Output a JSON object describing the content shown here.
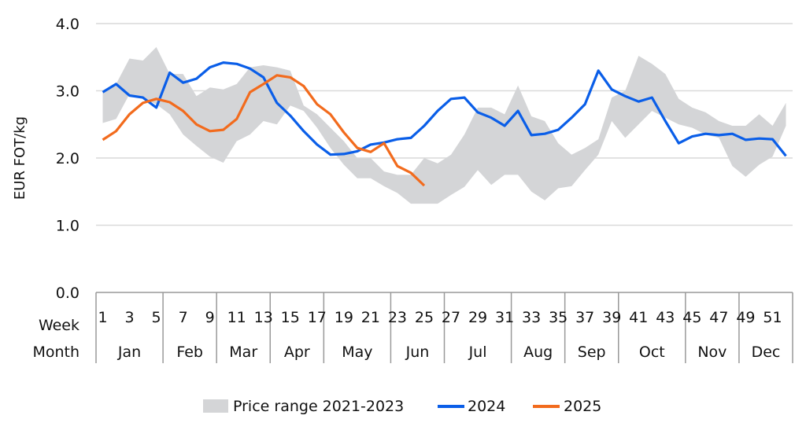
{
  "chart_data": {
    "type": "line",
    "ylabel": "EUR FOT/kg",
    "ylim": [
      0,
      4
    ],
    "yticks": [
      "0.0",
      "1.0",
      "2.0",
      "3.0",
      "4.0"
    ],
    "grid": true,
    "week_row_label": "Week",
    "month_row_label": "Month",
    "week_tick_labels": [
      "1",
      "3",
      "5",
      "7",
      "9",
      "11",
      "13",
      "15",
      "17",
      "19",
      "21",
      "23",
      "25",
      "27",
      "29",
      "31",
      "33",
      "35",
      "37",
      "39",
      "41",
      "43",
      "45",
      "47",
      "49",
      "51"
    ],
    "months": [
      {
        "label": "Jan",
        "weeks": 5
      },
      {
        "label": "Feb",
        "weeks": 4
      },
      {
        "label": "Mar",
        "weeks": 4
      },
      {
        "label": "Apr",
        "weeks": 4
      },
      {
        "label": "May",
        "weeks": 5
      },
      {
        "label": "Jun",
        "weeks": 4
      },
      {
        "label": "Jul",
        "weeks": 5
      },
      {
        "label": "Aug",
        "weeks": 4
      },
      {
        "label": "Sep",
        "weeks": 4
      },
      {
        "label": "Oct",
        "weeks": 5
      },
      {
        "label": "Nov",
        "weeks": 4
      },
      {
        "label": "Dec",
        "weeks": 4
      }
    ],
    "legend_position": "bottom",
    "range": {
      "name": "Price range 2021-2023",
      "color": "#d4d5d7",
      "upper": [
        3.0,
        3.1,
        3.48,
        3.45,
        3.65,
        3.25,
        3.25,
        2.92,
        3.05,
        3.02,
        3.1,
        3.35,
        3.38,
        3.35,
        3.3,
        2.78,
        2.65,
        2.45,
        2.25,
        2.0,
        2.0,
        1.8,
        1.75,
        1.75,
        2.0,
        1.92,
        2.05,
        2.35,
        2.75,
        2.75,
        2.65,
        3.08,
        2.62,
        2.55,
        2.22,
        2.05,
        2.15,
        2.28,
        2.9,
        3.0,
        3.52,
        3.4,
        3.25,
        2.88,
        2.75,
        2.68,
        2.55,
        2.48,
        2.48,
        2.65,
        2.48,
        2.82
      ],
      "lower": [
        2.52,
        2.58,
        2.95,
        2.88,
        2.8,
        2.65,
        2.35,
        2.18,
        2.02,
        1.93,
        2.25,
        2.35,
        2.55,
        2.5,
        2.78,
        2.7,
        2.45,
        2.15,
        1.9,
        1.7,
        1.7,
        1.58,
        1.48,
        1.32,
        1.32,
        1.32,
        1.45,
        1.57,
        1.82,
        1.6,
        1.75,
        1.75,
        1.5,
        1.37,
        1.55,
        1.58,
        1.82,
        2.05,
        2.55,
        2.3,
        2.5,
        2.7,
        2.6,
        2.5,
        2.45,
        2.35,
        2.3,
        1.88,
        1.72,
        1.9,
        2.02,
        2.48
      ]
    },
    "series": [
      {
        "name": "2024",
        "color": "#0a5ee8",
        "values": [
          2.98,
          3.1,
          2.93,
          2.9,
          2.75,
          3.27,
          3.12,
          3.18,
          3.35,
          3.42,
          3.4,
          3.33,
          3.2,
          2.82,
          2.63,
          2.4,
          2.2,
          2.05,
          2.06,
          2.1,
          2.2,
          2.23,
          2.28,
          2.3,
          2.48,
          2.7,
          2.88,
          2.9,
          2.68,
          2.6,
          2.48,
          2.7,
          2.34,
          2.36,
          2.42,
          2.6,
          2.8,
          3.3,
          3.02,
          2.92,
          2.84,
          2.9,
          2.55,
          2.22,
          2.32,
          2.36,
          2.34,
          2.36,
          2.27,
          2.29,
          2.28,
          2.03
        ]
      },
      {
        "name": "2025",
        "color": "#f26b1d",
        "values": [
          2.27,
          2.4,
          2.65,
          2.82,
          2.88,
          2.83,
          2.7,
          2.5,
          2.4,
          2.42,
          2.58,
          2.98,
          3.1,
          3.23,
          3.2,
          3.07,
          2.8,
          2.65,
          2.38,
          2.15,
          2.09,
          2.22,
          1.88,
          1.78,
          1.59
        ]
      }
    ]
  }
}
